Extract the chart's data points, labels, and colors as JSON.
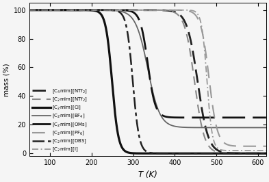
{
  "xlabel": "T (K)",
  "ylabel": "mass (%)",
  "xlim": [
    50,
    620
  ],
  "ylim": [
    -2,
    105
  ],
  "xticks": [
    100,
    200,
    300,
    400,
    500,
    600
  ],
  "yticks": [
    0,
    20,
    40,
    60,
    80,
    100
  ],
  "background_color": "#f5f5f5",
  "curves": [
    {
      "label": "[C$_4$mim][NTf$_2$]",
      "onset": 420,
      "end": 490,
      "residue": 0,
      "color": "#222222",
      "lw": 2.0,
      "ls": "dashed_heavy",
      "dashes": [
        7,
        3
      ]
    },
    {
      "label": "[C$_2$mim][NTf$_2$]",
      "onset": 415,
      "end": 480,
      "residue": 0,
      "color": "#888888",
      "lw": 1.5,
      "ls": "dashed_light",
      "dashes": [
        6,
        4
      ]
    },
    {
      "label": "[C$_2$mim][Cl]",
      "onset": 228,
      "end": 270,
      "residue": 0,
      "color": "#111111",
      "lw": 2.3,
      "ls": "solid",
      "dashes": null
    },
    {
      "label": "[C$_2$mim][BF$_4$]",
      "onset": 295,
      "end": 375,
      "residue": 18,
      "color": "#666666",
      "lw": 1.3,
      "ls": "solid",
      "dashes": null
    },
    {
      "label": "[C$_2$mim][OMs]",
      "onset": 310,
      "end": 360,
      "residue": 25,
      "color": "#111111",
      "lw": 2.0,
      "ls": "dashed_long",
      "dashes": [
        12,
        4
      ]
    },
    {
      "label": "[C$_2$mim][PF$_6$]",
      "onset": 455,
      "end": 510,
      "residue": 5,
      "color": "#999999",
      "lw": 1.5,
      "ls": "dashed_med",
      "dashes": [
        9,
        5
      ]
    },
    {
      "label": "[C$_2$mim][DBS]",
      "onset": 278,
      "end": 320,
      "residue": 0,
      "color": "#222222",
      "lw": 1.8,
      "ls": "dashdot",
      "dashes": [
        7,
        2,
        2,
        2
      ]
    },
    {
      "label": "[C$_2$mim][I]",
      "onset": 460,
      "end": 495,
      "residue": 2,
      "color": "#999999",
      "lw": 1.3,
      "ls": "dashdot_light",
      "dashes": [
        5,
        2,
        1,
        2
      ]
    }
  ]
}
